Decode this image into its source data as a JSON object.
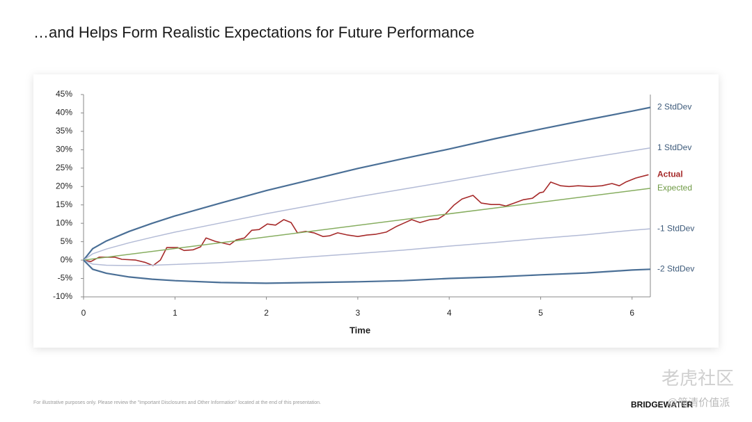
{
  "slide_title": "…and Helps Form Realistic Expectations for Future Performance",
  "footnote": "For illustrative purposes only. Please review the \"Important Disclosures and Other Information\" located at the end of this presentation.",
  "logo": "BRIDGEWATER",
  "watermark": [
    "老虎社区",
    "@简清价值派"
  ],
  "chart_data": {
    "type": "line",
    "x_label": "Time",
    "xlim": [
      0,
      6.2
    ],
    "xticks": [
      0,
      1,
      2,
      3,
      4,
      5,
      6
    ],
    "ylim": [
      -10,
      45
    ],
    "yticks": [
      {
        "value": -10,
        "label": "-10%"
      },
      {
        "value": -5,
        "label": "-5%"
      },
      {
        "value": 0,
        "label": "0%"
      },
      {
        "value": 5,
        "label": "5%"
      },
      {
        "value": 10,
        "label": "10%"
      },
      {
        "value": 15,
        "label": "15%"
      },
      {
        "value": 20,
        "label": "20%"
      },
      {
        "value": 25,
        "label": "25%"
      },
      {
        "value": 30,
        "label": "30%"
      },
      {
        "value": 35,
        "label": "35%"
      },
      {
        "value": 40,
        "label": "40%"
      },
      {
        "value": 45,
        "label": "45%"
      }
    ],
    "series": [
      {
        "name": "2 StdDev",
        "color": "#4a6f96",
        "label_color": "#3d5a7a",
        "width": 2.2,
        "x": [
          0,
          0.1,
          0.25,
          0.5,
          0.75,
          1,
          1.5,
          2,
          2.5,
          3,
          3.5,
          4,
          4.5,
          5,
          5.5,
          6,
          6.2
        ],
        "values": [
          0,
          3.1,
          5.2,
          7.8,
          10.0,
          12.0,
          15.5,
          18.9,
          21.9,
          24.9,
          27.6,
          30.2,
          33.0,
          35.6,
          38.1,
          40.5,
          41.5
        ]
      },
      {
        "name": "1 StdDev",
        "color": "#b3bbd6",
        "label_color": "#3d5a7a",
        "width": 1.5,
        "x": [
          0,
          0.1,
          0.25,
          0.5,
          0.75,
          1,
          1.5,
          2,
          2.5,
          3,
          3.5,
          4,
          4.5,
          5,
          5.5,
          6,
          6.2
        ],
        "values": [
          0,
          1.7,
          3.0,
          4.7,
          6.2,
          7.6,
          10.1,
          12.6,
          14.9,
          17.2,
          19.3,
          21.4,
          23.6,
          25.7,
          27.7,
          29.7,
          30.5
        ]
      },
      {
        "name": "Actual",
        "color": "#a62a2a",
        "label_color": "#a62a2a",
        "width": 1.6,
        "bold": true,
        "x": [
          0,
          0.08,
          0.17,
          0.34,
          0.42,
          0.57,
          0.67,
          0.76,
          0.84,
          0.91,
          1.03,
          1.1,
          1.2,
          1.28,
          1.34,
          1.44,
          1.6,
          1.67,
          1.76,
          1.84,
          1.92,
          2.01,
          2.1,
          2.19,
          2.27,
          2.34,
          2.43,
          2.52,
          2.62,
          2.69,
          2.78,
          2.89,
          3.0,
          3.1,
          3.19,
          3.31,
          3.42,
          3.5,
          3.59,
          3.68,
          3.79,
          3.88,
          3.95,
          4.05,
          4.14,
          4.26,
          4.35,
          4.46,
          4.55,
          4.62,
          4.71,
          4.81,
          4.91,
          4.99,
          5.03,
          5.11,
          5.22,
          5.31,
          5.41,
          5.55,
          5.67,
          5.78,
          5.86,
          5.93,
          6.04,
          6.18
        ],
        "values": [
          0,
          -0.4,
          0.8,
          0.8,
          0.2,
          0,
          -0.6,
          -1.5,
          0,
          3.4,
          3.4,
          2.6,
          2.8,
          3.6,
          6.0,
          5.1,
          4.2,
          5.5,
          6.0,
          8.1,
          8.3,
          9.8,
          9.5,
          11.0,
          10.2,
          7.4,
          7.8,
          7.4,
          6.4,
          6.6,
          7.4,
          6.8,
          6.4,
          6.8,
          7.0,
          7.6,
          9.1,
          10.0,
          11.0,
          10.2,
          11.0,
          11.2,
          12.3,
          14.9,
          16.6,
          17.6,
          15.5,
          15.1,
          15.1,
          14.7,
          15.5,
          16.4,
          16.8,
          18.3,
          18.5,
          21.2,
          20.2,
          20.0,
          20.2,
          20.0,
          20.2,
          20.8,
          20.2,
          21.2,
          22.3,
          23.2
        ]
      },
      {
        "name": "Expected",
        "color": "#86ad5f",
        "label_color": "#6f9a45",
        "width": 1.5,
        "x": [
          0,
          6.2
        ],
        "values": [
          0,
          19.5
        ]
      },
      {
        "name": "-1 StdDev",
        "color": "#b3bbd6",
        "label_color": "#3d5a7a",
        "width": 1.5,
        "x": [
          0,
          0.1,
          0.25,
          0.5,
          0.75,
          1,
          1.5,
          2,
          2.5,
          3,
          3.5,
          4,
          4.5,
          5,
          5.5,
          6,
          6.2
        ],
        "values": [
          0,
          -1.1,
          -1.4,
          -1.5,
          -1.4,
          -1.2,
          -0.7,
          0,
          0.9,
          1.8,
          2.7,
          3.8,
          4.8,
          5.9,
          6.9,
          8.1,
          8.5
        ]
      },
      {
        "name": "-2 StdDev",
        "color": "#4a6f96",
        "label_color": "#3d5a7a",
        "width": 2.2,
        "x": [
          0,
          0.1,
          0.25,
          0.5,
          0.75,
          1,
          1.5,
          2,
          2.5,
          3,
          3.5,
          4,
          4.5,
          5,
          5.5,
          6,
          6.2
        ],
        "values": [
          0,
          -2.5,
          -3.6,
          -4.6,
          -5.2,
          -5.6,
          -6.1,
          -6.3,
          -6.1,
          -5.9,
          -5.6,
          -5.0,
          -4.6,
          -4.0,
          -3.5,
          -2.7,
          -2.5
        ]
      }
    ]
  }
}
